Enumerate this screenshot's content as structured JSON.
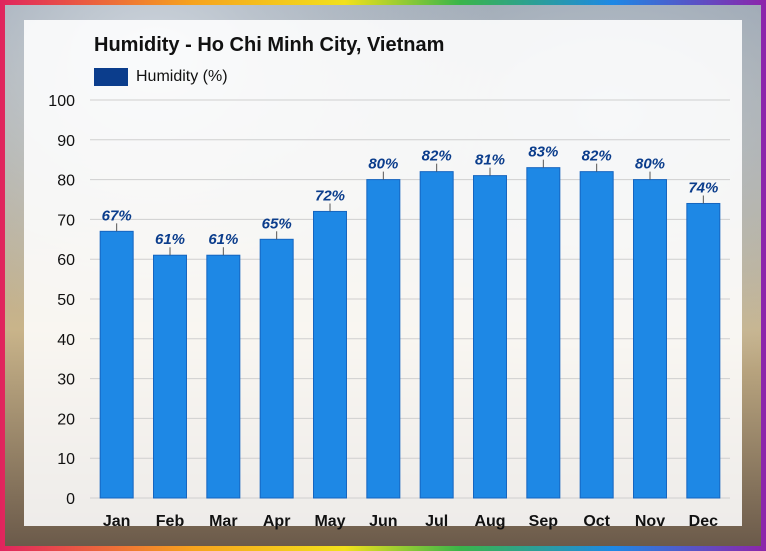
{
  "chart_data": {
    "type": "bar",
    "title": "Humidity - Ho Chi Minh City, Vietnam",
    "legend": [
      "Humidity (%)"
    ],
    "categories": [
      "Jan",
      "Feb",
      "Mar",
      "Apr",
      "May",
      "Jun",
      "Jul",
      "Aug",
      "Sep",
      "Oct",
      "Nov",
      "Dec"
    ],
    "series": [
      {
        "name": "Humidity (%)",
        "values": [
          67,
          61,
          61,
          65,
          72,
          80,
          82,
          81,
          83,
          82,
          80,
          74
        ]
      }
    ],
    "data_labels": [
      "67%",
      "61%",
      "61%",
      "65%",
      "72%",
      "80%",
      "82%",
      "81%",
      "83%",
      "82%",
      "80%",
      "74%"
    ],
    "ylim": [
      0,
      100
    ],
    "yticks": [
      0,
      10,
      20,
      30,
      40,
      50,
      60,
      70,
      80,
      90,
      100
    ],
    "grid": true,
    "legend_position": "top-left",
    "colors": {
      "bar": "#1e88e5",
      "bar_edge": "#1565c0",
      "label": "#0b3d8c",
      "legend": "#0b3d8c"
    }
  }
}
